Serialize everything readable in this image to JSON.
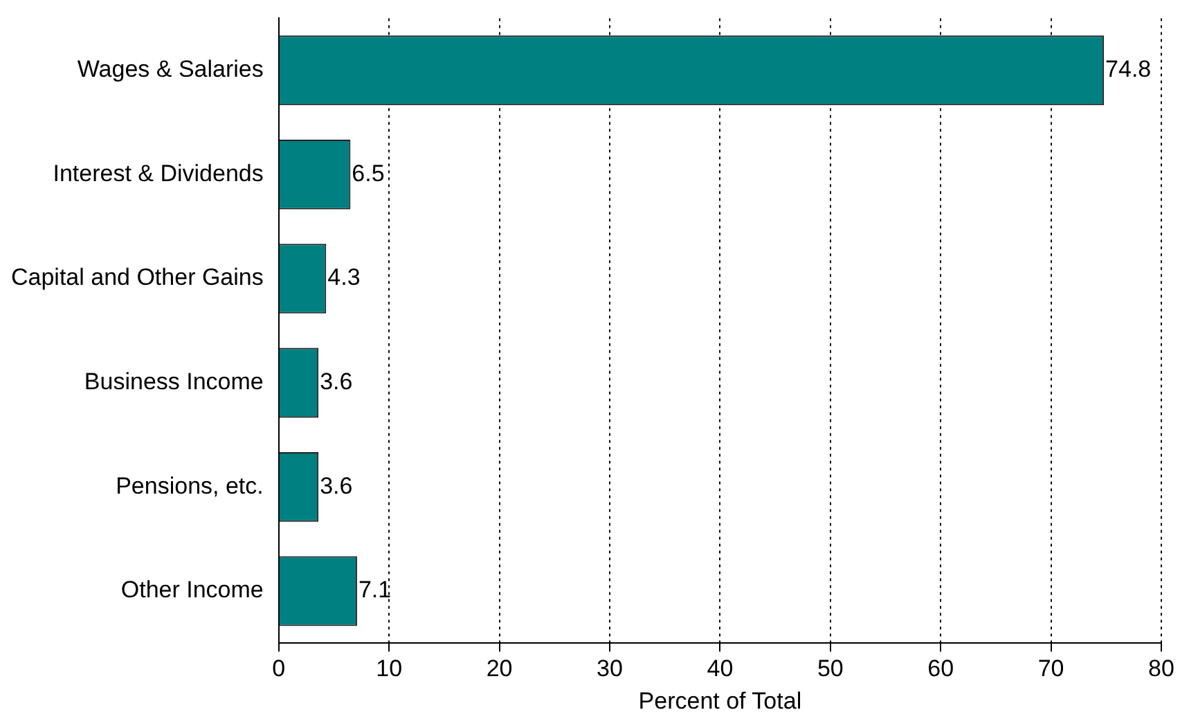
{
  "chart_data": {
    "type": "bar",
    "orientation": "horizontal",
    "categories": [
      "Wages & Salaries",
      "Interest & Dividends",
      "Capital and Other Gains",
      "Business Income",
      "Pensions, etc.",
      "Other Income"
    ],
    "values": [
      74.8,
      6.5,
      4.3,
      3.6,
      3.6,
      7.1
    ],
    "color": "#008080",
    "xlabel": "Percent of Total",
    "xlim": [
      0,
      80
    ],
    "xticks": [
      0,
      10,
      20,
      30,
      40,
      50,
      60,
      70,
      80
    ],
    "grid": "x",
    "data_labels": true,
    "legend": false
  }
}
